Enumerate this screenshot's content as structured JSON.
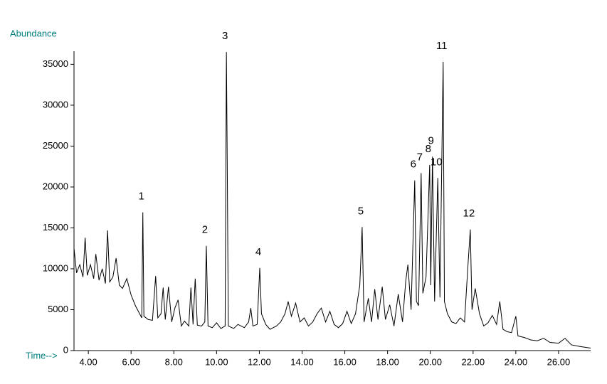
{
  "chart_data": {
    "type": "line",
    "y_axis_label": "Abundance",
    "x_axis_label": "Time-->",
    "color": "#000000",
    "xlim": [
      3.33,
      27.5
    ],
    "ylim": [
      0,
      36600
    ],
    "xticks": [
      {
        "value": 4,
        "label": "4.00"
      },
      {
        "value": 6,
        "label": "6.00"
      },
      {
        "value": 8,
        "label": "8.00"
      },
      {
        "value": 10,
        "label": "10.00"
      },
      {
        "value": 12,
        "label": "12.00"
      },
      {
        "value": 14,
        "label": "14.00"
      },
      {
        "value": 16,
        "label": "16.00"
      },
      {
        "value": 18,
        "label": "18.00"
      },
      {
        "value": 20,
        "label": "20.00"
      },
      {
        "value": 22,
        "label": "22.00"
      },
      {
        "value": 24,
        "label": "24.00"
      },
      {
        "value": 26,
        "label": "26.00"
      }
    ],
    "yticks": [
      0,
      5000,
      10000,
      15000,
      20000,
      25000,
      30000,
      35000
    ],
    "x": [
      3.33,
      3.45,
      3.6,
      3.75,
      3.85,
      3.95,
      4.1,
      4.25,
      4.35,
      4.5,
      4.65,
      4.8,
      4.9,
      5.0,
      5.15,
      5.3,
      5.45,
      5.6,
      5.8,
      6.0,
      6.2,
      6.4,
      6.5,
      6.55,
      6.6,
      6.8,
      7.0,
      7.15,
      7.25,
      7.4,
      7.5,
      7.6,
      7.75,
      7.9,
      8.05,
      8.2,
      8.35,
      8.5,
      8.7,
      8.8,
      8.9,
      9.0,
      9.1,
      9.3,
      9.45,
      9.52,
      9.6,
      9.8,
      10.0,
      10.2,
      10.4,
      10.46,
      10.5,
      10.55,
      10.8,
      11.0,
      11.3,
      11.5,
      11.6,
      11.7,
      11.9,
      12.02,
      12.1,
      12.3,
      12.5,
      12.8,
      13.0,
      13.2,
      13.35,
      13.5,
      13.7,
      13.9,
      14.1,
      14.3,
      14.5,
      14.7,
      14.9,
      15.1,
      15.3,
      15.5,
      15.7,
      15.9,
      16.1,
      16.3,
      16.5,
      16.7,
      16.81,
      16.9,
      17.1,
      17.25,
      17.4,
      17.55,
      17.75,
      17.9,
      18.1,
      18.3,
      18.5,
      18.7,
      18.85,
      18.95,
      19.1,
      19.27,
      19.35,
      19.45,
      19.57,
      19.65,
      19.8,
      19.97,
      20.02,
      20.1,
      20.2,
      20.35,
      20.45,
      20.6,
      20.66,
      20.8,
      21.0,
      21.2,
      21.4,
      21.6,
      21.75,
      21.87,
      21.95,
      22.1,
      22.3,
      22.5,
      22.7,
      22.9,
      23.1,
      23.25,
      23.4,
      23.6,
      23.8,
      24.0,
      24.1,
      24.4,
      24.7,
      25.0,
      25.3,
      25.6,
      26.0,
      26.3,
      26.6,
      27.0,
      27.5
    ],
    "values": [
      12500,
      9500,
      10500,
      9000,
      13800,
      9200,
      10500,
      8800,
      11800,
      8600,
      10000,
      8200,
      14700,
      8400,
      9000,
      11300,
      8000,
      7600,
      8800,
      6800,
      5500,
      4500,
      4000,
      16900,
      4200,
      3800,
      3700,
      9100,
      4000,
      4500,
      7700,
      3800,
      7800,
      3500,
      5200,
      6200,
      3000,
      3600,
      3000,
      7700,
      3200,
      8800,
      3100,
      3000,
      3500,
      12800,
      3000,
      2800,
      3400,
      2700,
      3000,
      36500,
      22500,
      3000,
      2700,
      3200,
      2800,
      3500,
      5200,
      3000,
      3200,
      10100,
      4500,
      3200,
      2600,
      3000,
      3500,
      4500,
      6000,
      4200,
      5800,
      3500,
      4000,
      3000,
      3500,
      4500,
      5200,
      3500,
      4800,
      3200,
      2800,
      3300,
      4800,
      3300,
      4500,
      8000,
      15100,
      3500,
      6400,
      3500,
      7500,
      3800,
      7800,
      3800,
      5600,
      3000,
      6900,
      3500,
      8500,
      10500,
      5000,
      20800,
      6000,
      5500,
      21700,
      7000,
      9000,
      22700,
      8000,
      23700,
      6000,
      21100,
      6500,
      35300,
      6000,
      4500,
      3500,
      3300,
      4000,
      3500,
      10000,
      14800,
      5000,
      7600,
      4500,
      3000,
      3400,
      4300,
      3200,
      6000,
      2600,
      2300,
      2200,
      4200,
      1800,
      1600,
      1300,
      1200,
      1500,
      1000,
      900,
      1500,
      700,
      500,
      300
    ],
    "peak_labels": [
      {
        "text": "1",
        "x": 6.55,
        "y": 16900
      },
      {
        "text": "2",
        "x": 9.52,
        "y": 12800
      },
      {
        "text": "3",
        "x": 10.46,
        "y": 36500
      },
      {
        "text": "4",
        "x": 12.02,
        "y": 10100
      },
      {
        "text": "5",
        "x": 16.81,
        "y": 15100
      },
      {
        "text": "6",
        "x": 19.27,
        "y": 20800
      },
      {
        "text": "7",
        "x": 19.57,
        "y": 21700
      },
      {
        "text": "8",
        "x": 19.97,
        "y": 22700
      },
      {
        "text": "9",
        "x": 20.1,
        "y": 23700
      },
      {
        "text": "10",
        "x": 20.35,
        "y": 21100
      },
      {
        "text": "11",
        "x": 20.6,
        "y": 35300
      },
      {
        "text": "12",
        "x": 21.87,
        "y": 14800
      }
    ]
  }
}
